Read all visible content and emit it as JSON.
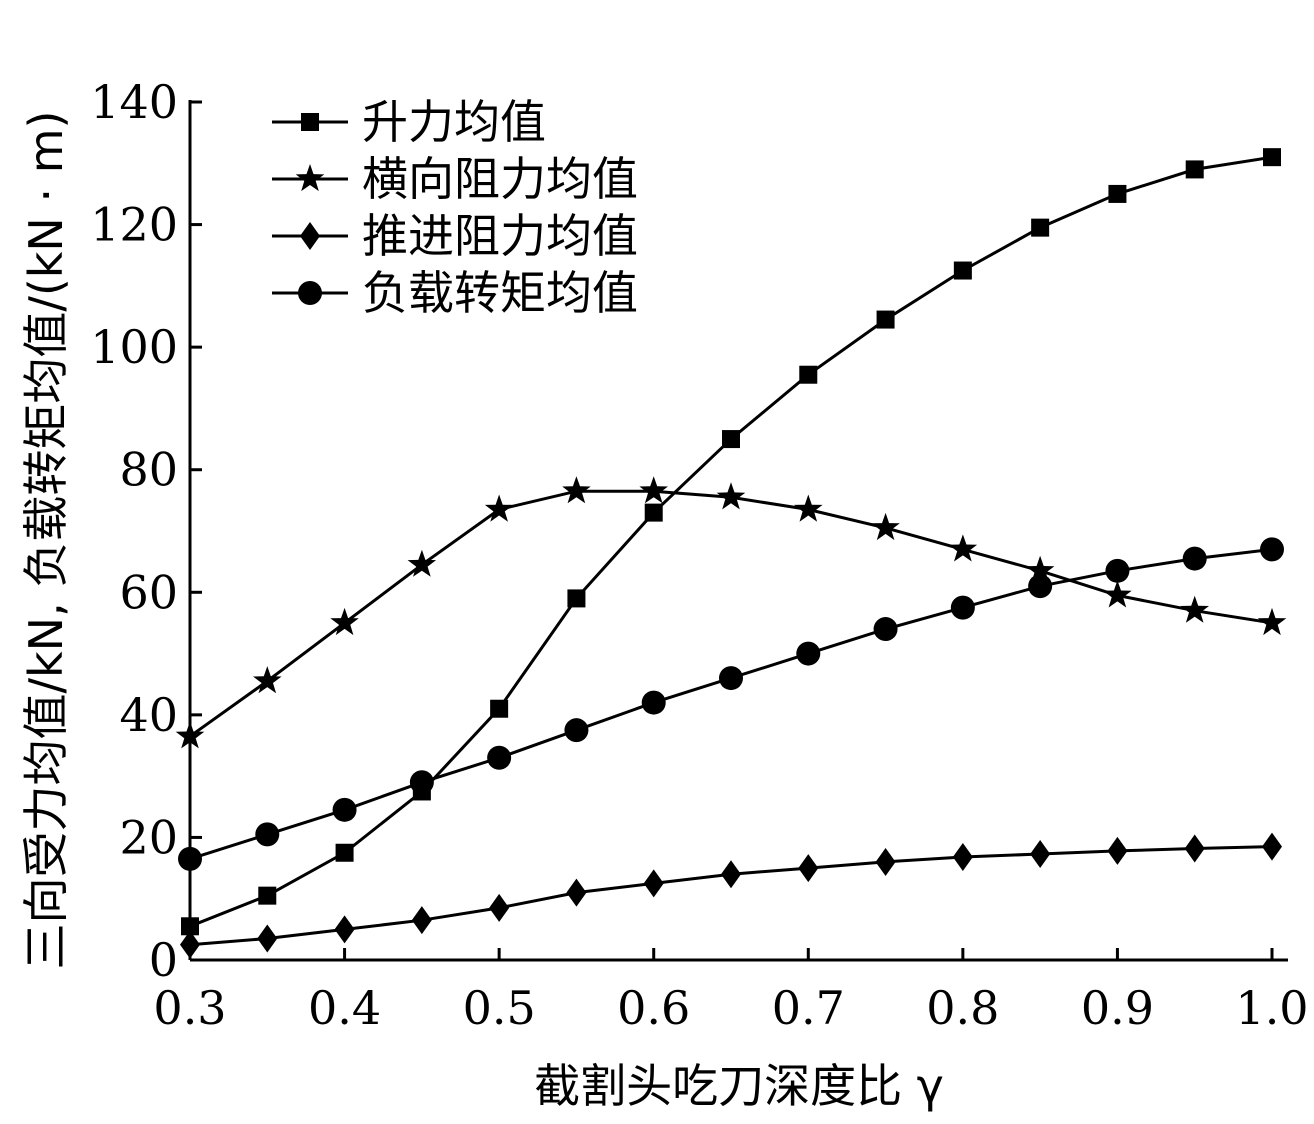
{
  "chart_data": {
    "type": "line",
    "xlabel": "截割头吃刀深度比 γ",
    "ylabel": "三向受力均值/kN, 负载转矩均值/(kN · m)",
    "xlim": [
      0.3,
      1.0
    ],
    "ylim": [
      0,
      140
    ],
    "x_ticks": [
      "0.3",
      "0.4",
      "0.5",
      "0.6",
      "0.7",
      "0.8",
      "0.9",
      "1.0"
    ],
    "y_ticks": [
      "0",
      "20",
      "40",
      "60",
      "80",
      "100",
      "120",
      "140"
    ],
    "grid": false,
    "legend_position": "top-left",
    "x": [
      0.3,
      0.35,
      0.4,
      0.45,
      0.5,
      0.55,
      0.6,
      0.65,
      0.7,
      0.75,
      0.8,
      0.85,
      0.9,
      0.95,
      1.0
    ],
    "series": [
      {
        "name": "升力均值",
        "marker": "square",
        "values": [
          5.5,
          10.5,
          17.5,
          27.5,
          41,
          59,
          73,
          85,
          95.5,
          104.5,
          112.5,
          119.5,
          125,
          129,
          131
        ]
      },
      {
        "name": "横向阻力均值",
        "marker": "star",
        "values": [
          36.5,
          45.5,
          55,
          64.5,
          73.5,
          76.5,
          76.5,
          75.5,
          73.5,
          70.5,
          67,
          63.5,
          59.5,
          57,
          55
        ]
      },
      {
        "name": "推进阻力均值",
        "marker": "diamond",
        "values": [
          2.5,
          3.5,
          5,
          6.5,
          8.5,
          11,
          12.5,
          14,
          15,
          16,
          16.8,
          17.3,
          17.8,
          18.2,
          18.5
        ]
      },
      {
        "name": "负载转矩均值",
        "marker": "circle",
        "values": [
          16.5,
          20.5,
          24.5,
          29,
          33,
          37.5,
          42,
          46,
          50,
          54,
          57.5,
          61,
          63.5,
          65.5,
          67
        ]
      }
    ]
  }
}
